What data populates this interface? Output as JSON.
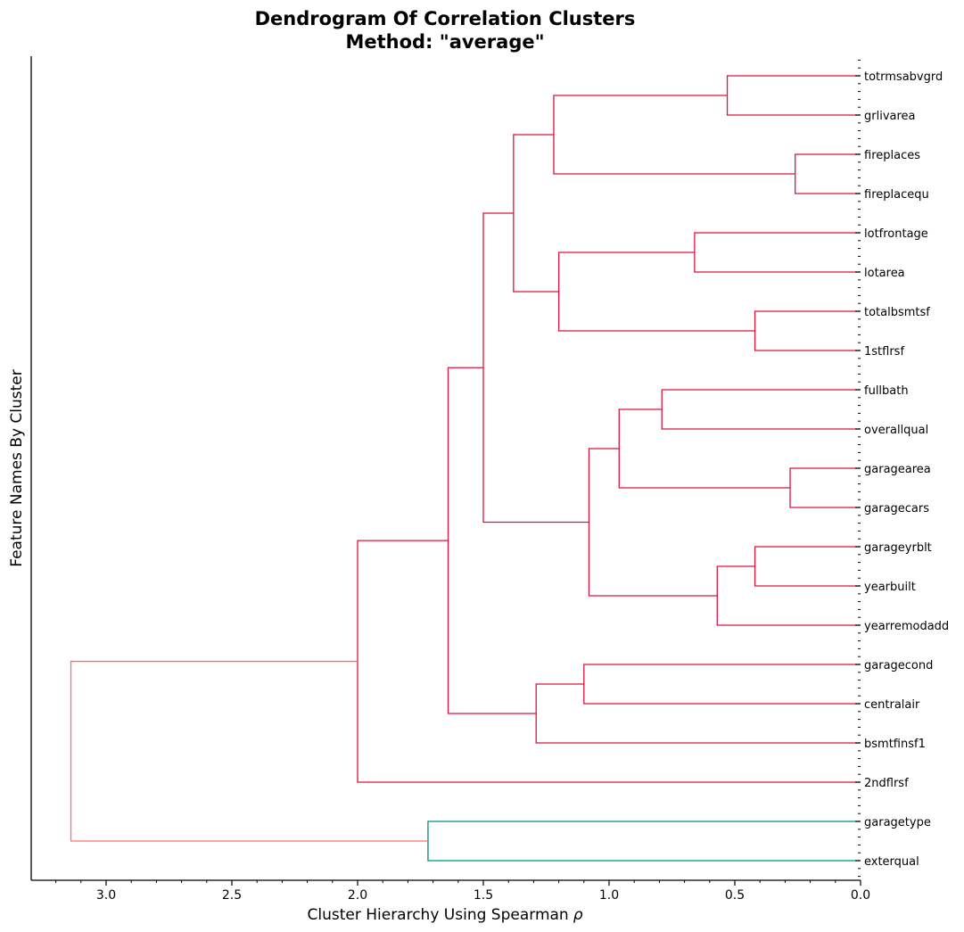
{
  "chart_data": {
    "type": "dendrogram",
    "title": "Dendrogram Of Correlation Clusters",
    "subtitle": "Method: \"average\"",
    "xlabel": "Cluster Hierarchy Using Spearman",
    "xlabel_symbol": "ρ",
    "ylabel": "Feature Names By Cluster",
    "xlim": [
      3.3,
      0.0
    ],
    "xticks": [
      "3.0",
      "2.5",
      "2.0",
      "1.5",
      "1.0",
      "0.5",
      "0.0"
    ],
    "xtick_values": [
      3.0,
      2.5,
      2.0,
      1.5,
      1.0,
      0.5,
      0.0
    ],
    "leaves": [
      "totrmsabvgrd",
      "grlivarea",
      "fireplaces",
      "fireplacequ",
      "lotfrontage",
      "lotarea",
      "totalbsmtsf",
      "1stflrsf",
      "fullbath",
      "overallqual",
      "garagearea",
      "garagecars",
      "garageyrblt",
      "yearbuilt",
      "yearremodadd",
      "garagecond",
      "centralair",
      "bsmtfinsf1",
      "2ndflrsf",
      "garagetype",
      "exterqual"
    ],
    "colors": {
      "cluster_main": "#DC143C",
      "cluster_secondary": "#008B80",
      "above_threshold": "#FF6F6F"
    },
    "merges": [
      {
        "id": "A",
        "left": "totrmsabvgrd",
        "right": "grlivarea",
        "height": 0.53,
        "color": "cluster_main"
      },
      {
        "id": "B",
        "left": "fireplaces",
        "right": "fireplacequ",
        "height": 0.26,
        "color": "cluster_main"
      },
      {
        "id": "C",
        "left": "A",
        "right": "B",
        "height": 1.22,
        "color": "cluster_main"
      },
      {
        "id": "D",
        "left": "lotfrontage",
        "right": "lotarea",
        "height": 0.66,
        "color": "cluster_main"
      },
      {
        "id": "E",
        "left": "totalbsmtsf",
        "right": "1stflrsf",
        "height": 0.42,
        "color": "cluster_main"
      },
      {
        "id": "F",
        "left": "D",
        "right": "E",
        "height": 1.2,
        "color": "cluster_main"
      },
      {
        "id": "G",
        "left": "C",
        "right": "F",
        "height": 1.38,
        "color": "cluster_main"
      },
      {
        "id": "H",
        "left": "fullbath",
        "right": "overallqual",
        "height": 0.79,
        "color": "cluster_main"
      },
      {
        "id": "I",
        "left": "garagearea",
        "right": "garagecars",
        "height": 0.28,
        "color": "cluster_main"
      },
      {
        "id": "J",
        "left": "H",
        "right": "I",
        "height": 0.96,
        "color": "cluster_main"
      },
      {
        "id": "K",
        "left": "garageyrblt",
        "right": "yearbuilt",
        "height": 0.42,
        "color": "cluster_main"
      },
      {
        "id": "L",
        "left": "K",
        "right": "yearremodadd",
        "height": 0.57,
        "color": "cluster_main"
      },
      {
        "id": "M",
        "left": "J",
        "right": "L",
        "height": 1.08,
        "color": "cluster_main"
      },
      {
        "id": "N",
        "left": "G",
        "right": "M",
        "height": 1.5,
        "color": "cluster_main"
      },
      {
        "id": "O",
        "left": "garagecond",
        "right": "centralair",
        "height": 1.1,
        "color": "cluster_main"
      },
      {
        "id": "P",
        "left": "O",
        "right": "bsmtfinsf1",
        "height": 1.29,
        "color": "cluster_main"
      },
      {
        "id": "Q",
        "left": "N",
        "right": "P",
        "height": 1.64,
        "color": "cluster_main"
      },
      {
        "id": "R",
        "left": "Q",
        "right": "2ndflrsf",
        "height": 2.0,
        "color": "cluster_main"
      },
      {
        "id": "S",
        "left": "garagetype",
        "right": "exterqual",
        "height": 1.72,
        "color": "cluster_secondary"
      },
      {
        "id": "T",
        "left": "R",
        "right": "S",
        "height": 3.14,
        "color": "above_threshold"
      }
    ]
  }
}
